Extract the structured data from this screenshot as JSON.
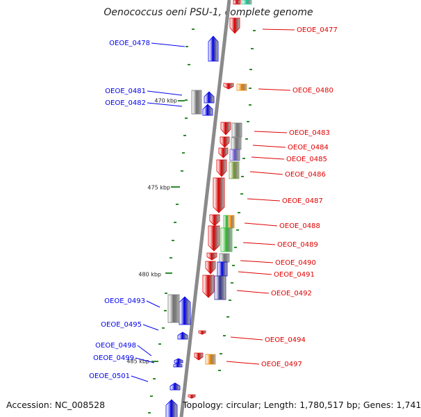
{
  "title": "Oenococcus oeni PSU-1, complete genome",
  "accession_text": "Accession: NC_008528",
  "summary_text": "Topology: circular; Length: 1,780,517 bp; Genes: 1,741",
  "colors": {
    "forward": "#e00000",
    "reverse": "#0000ee",
    "backbone": "#8a8a8a",
    "tick": "#2d8a2d",
    "gray": "#777777",
    "orange": "#ee8800",
    "green": "#33bb33",
    "olive": "#779933",
    "violet": "#6655cc",
    "navy": "#333399",
    "teal": "#22cc99"
  },
  "scale_labels": [
    "470 kbp",
    "475 kbp",
    "480 kbp",
    "485 kbp"
  ],
  "forward_labels": [
    "OEOE_0477",
    "OEOE_0480",
    "OEOE_0483",
    "OEOE_0484",
    "OEOE_0485",
    "OEOE_0486",
    "OEOE_0487",
    "OEOE_0488",
    "OEOE_0489",
    "OEOE_0490",
    "OEOE_0491",
    "OEOE_0492",
    "OEOE_0494",
    "OEOE_0497"
  ],
  "reverse_labels": [
    "OEOE_0478",
    "OEOE_0481",
    "OEOE_0482",
    "OEOE_0493",
    "OEOE_0495",
    "OEOE_0498",
    "OEOE_0499",
    "OEOE_0501"
  ]
}
